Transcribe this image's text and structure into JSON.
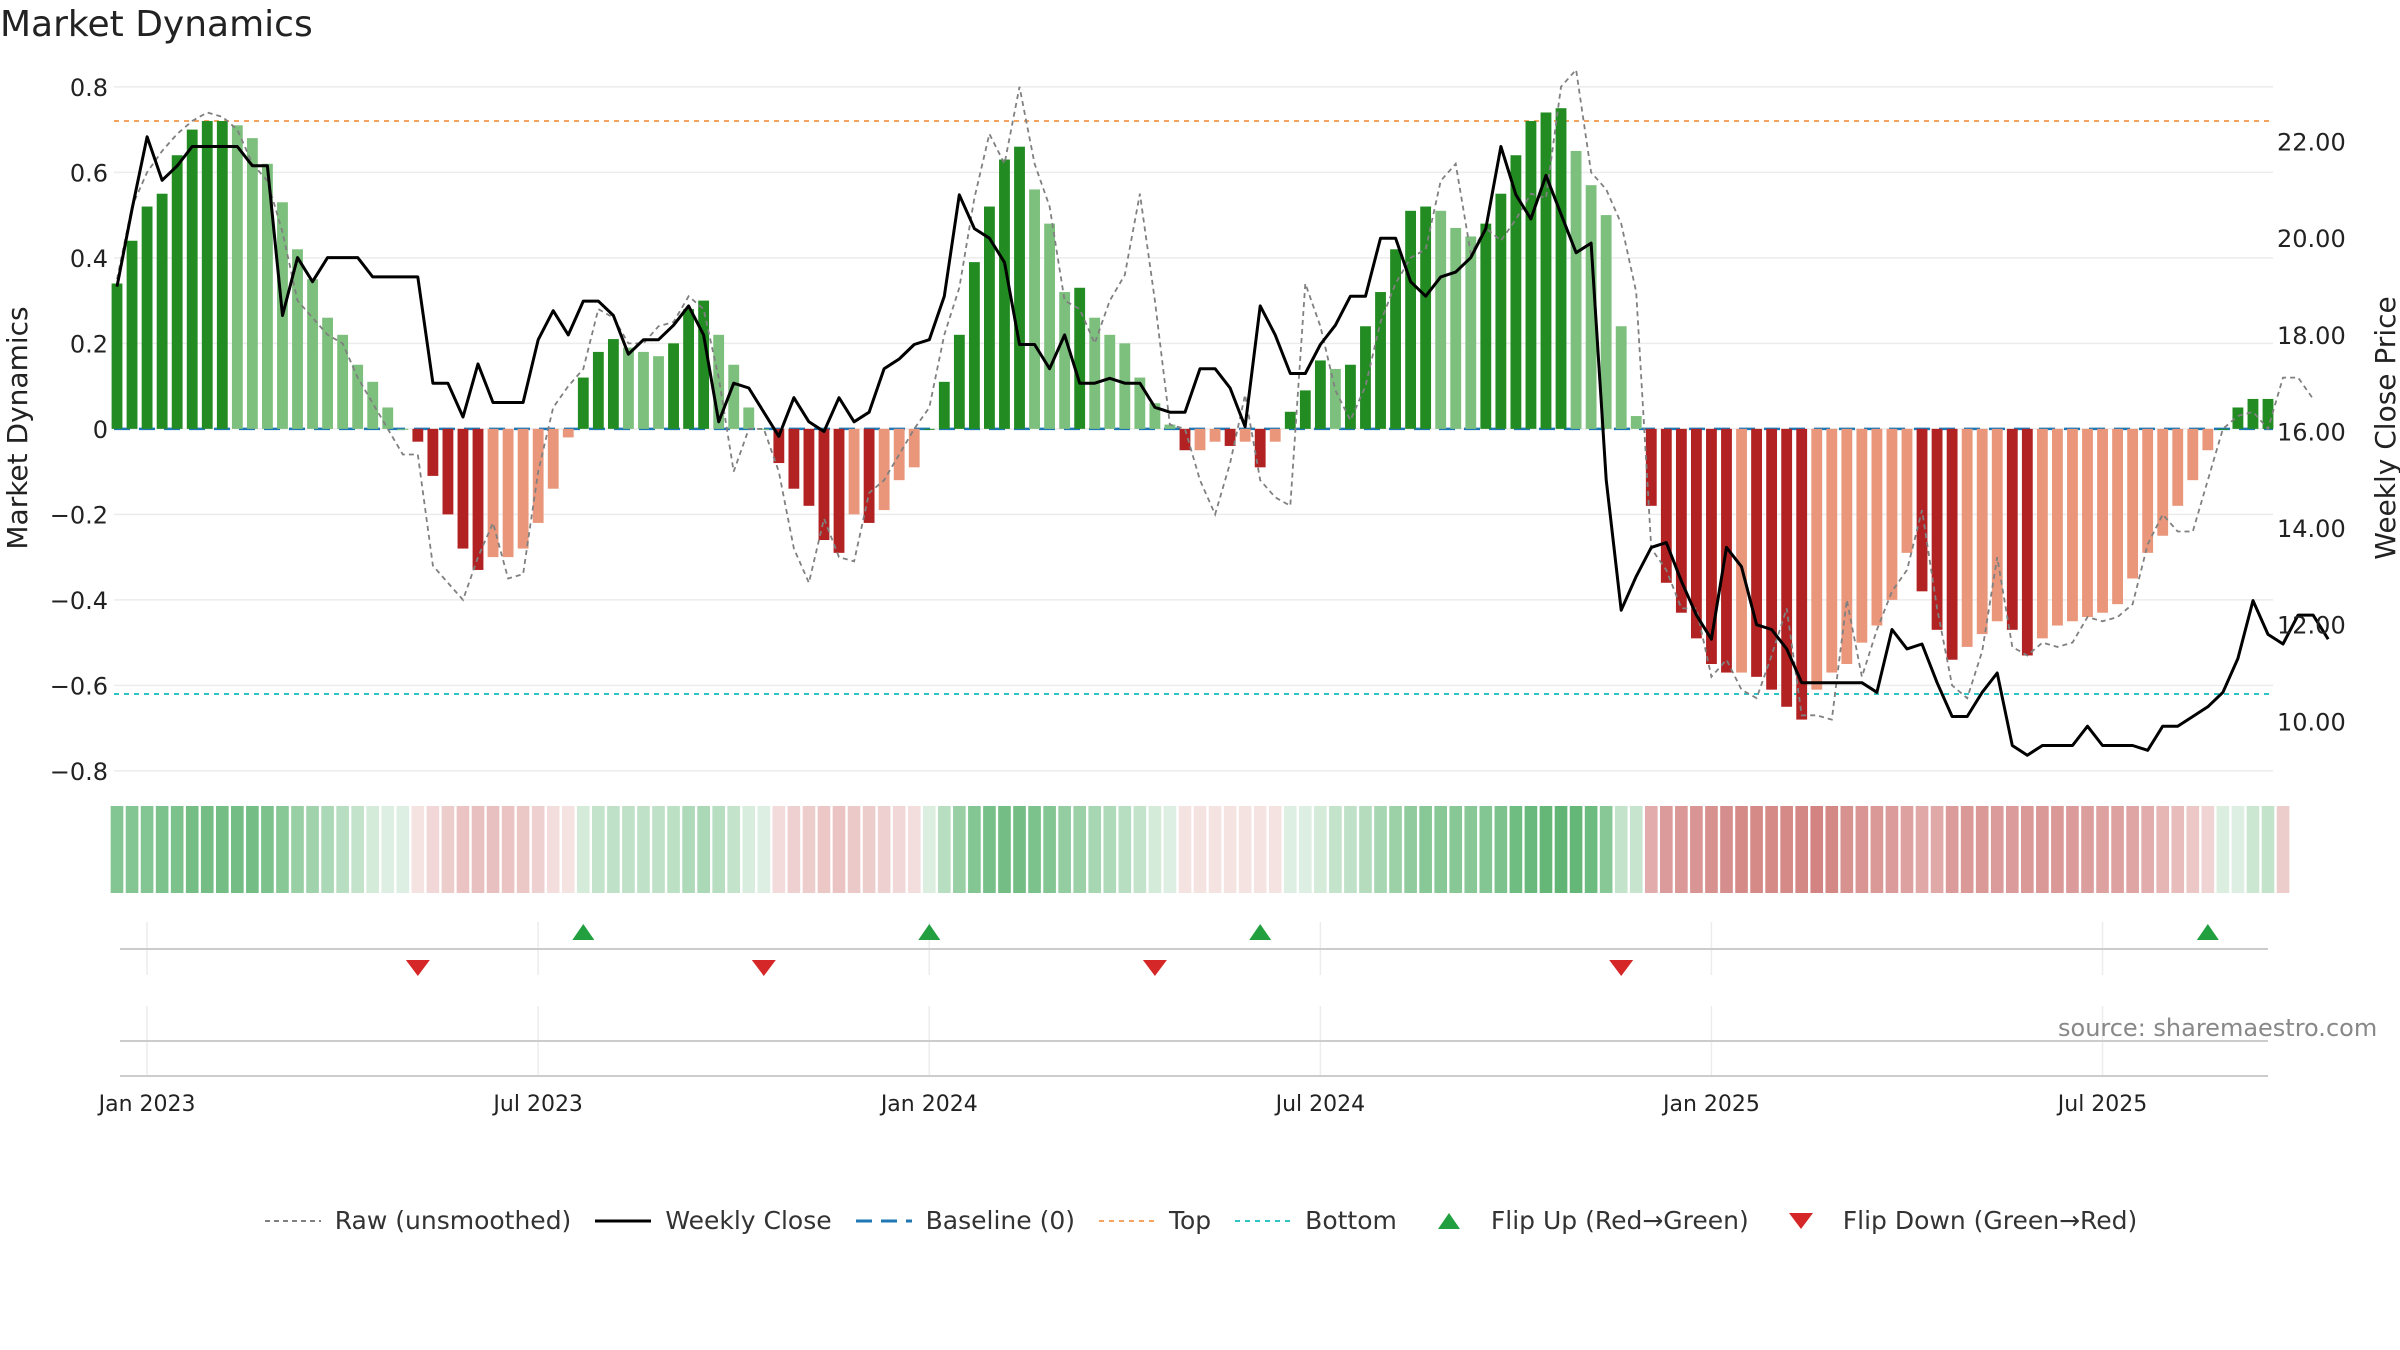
{
  "chart_data": {
    "type": "bar",
    "title": "Market Dynamics",
    "ylabel_left": "Market Dynamics",
    "ylabel_right": "Weekly Close Price",
    "ylim_left": [
      -0.84,
      0.83
    ],
    "ylim_right": [
      8.62,
      23.4
    ],
    "yticks_left": [
      {
        "v": 0.8,
        "label": "0.8"
      },
      {
        "v": 0.6,
        "label": "0.6"
      },
      {
        "v": 0.4,
        "label": "0.4"
      },
      {
        "v": 0.2,
        "label": "0.2"
      },
      {
        "v": 0,
        "label": "0"
      },
      {
        "v": -0.2,
        "label": "−0.2"
      },
      {
        "v": -0.4,
        "label": "−0.4"
      },
      {
        "v": -0.6,
        "label": "−0.6"
      },
      {
        "v": -0.8,
        "label": "−0.8"
      }
    ],
    "yticks_right": [
      {
        "v": 22,
        "label": "22.00"
      },
      {
        "v": 20,
        "label": "20.00"
      },
      {
        "v": 18,
        "label": "18.00"
      },
      {
        "v": 16,
        "label": "16.00"
      },
      {
        "v": 14,
        "label": "14.00"
      },
      {
        "v": 12,
        "label": "12.00"
      },
      {
        "v": 10,
        "label": "10.00"
      }
    ],
    "xticks": [
      {
        "week": 2,
        "label": "Jan 2023"
      },
      {
        "week": 28,
        "label": "Jul 2023"
      },
      {
        "week": 54,
        "label": "Jan 2024"
      },
      {
        "week": 80,
        "label": "Jul 2024"
      },
      {
        "week": 106,
        "label": "Jan 2025"
      },
      {
        "week": 132,
        "label": "Jul 2025"
      }
    ],
    "week_count": 144,
    "top_level": 0.72,
    "bottom_level": -0.62,
    "baseline": 0,
    "momentum": [
      0.34,
      0.44,
      0.52,
      0.55,
      0.64,
      0.7,
      0.72,
      0.72,
      0.71,
      0.68,
      0.62,
      0.53,
      0.42,
      0.35,
      0.26,
      0.22,
      0.15,
      0.11,
      0.05,
      0.0,
      -0.03,
      -0.11,
      -0.2,
      -0.28,
      -0.33,
      -0.3,
      -0.3,
      -0.28,
      -0.22,
      -0.14,
      -0.02,
      0.12,
      0.18,
      0.21,
      0.19,
      0.18,
      0.17,
      0.2,
      0.28,
      0.3,
      0.22,
      0.15,
      0.05,
      0.0,
      -0.08,
      -0.14,
      -0.18,
      -0.26,
      -0.29,
      -0.2,
      -0.22,
      -0.19,
      -0.12,
      -0.09,
      0.0,
      0.11,
      0.22,
      0.39,
      0.52,
      0.63,
      0.66,
      0.56,
      0.48,
      0.32,
      0.33,
      0.26,
      0.22,
      0.2,
      0.12,
      0.06,
      0.01,
      -0.05,
      -0.05,
      -0.03,
      -0.04,
      -0.03,
      -0.09,
      -0.03,
      0.04,
      0.09,
      0.16,
      0.14,
      0.15,
      0.24,
      0.32,
      0.42,
      0.51,
      0.52,
      0.51,
      0.47,
      0.45,
      0.48,
      0.55,
      0.64,
      0.72,
      0.74,
      0.75,
      0.65,
      0.57,
      0.5,
      0.24,
      0.03,
      -0.18,
      -0.36,
      -0.43,
      -0.49,
      -0.55,
      -0.57,
      -0.57,
      -0.58,
      -0.61,
      -0.65,
      -0.68,
      -0.61,
      -0.57,
      -0.55,
      -0.5,
      -0.46,
      -0.4,
      -0.29,
      -0.38,
      -0.47,
      -0.54,
      -0.51,
      -0.48,
      -0.45,
      -0.47,
      -0.53,
      -0.49,
      -0.46,
      -0.45,
      -0.44,
      -0.43,
      -0.41,
      -0.35,
      -0.29,
      -0.25,
      -0.18,
      -0.12,
      -0.05,
      0.0,
      0.05,
      0.07,
      0.07
    ],
    "raw": [
      0.35,
      0.52,
      0.6,
      0.65,
      0.69,
      0.72,
      0.74,
      0.73,
      0.7,
      0.62,
      0.58,
      0.46,
      0.3,
      0.26,
      0.22,
      0.2,
      0.12,
      0.06,
      0.0,
      -0.06,
      -0.06,
      -0.32,
      -0.36,
      -0.4,
      -0.3,
      -0.22,
      -0.35,
      -0.34,
      -0.1,
      0.05,
      0.1,
      0.14,
      0.28,
      0.26,
      0.2,
      0.2,
      0.24,
      0.25,
      0.31,
      0.28,
      0.12,
      -0.1,
      0.0,
      0.0,
      -0.1,
      -0.28,
      -0.36,
      -0.21,
      -0.3,
      -0.31,
      -0.15,
      -0.12,
      -0.06,
      0.0,
      0.05,
      0.22,
      0.33,
      0.54,
      0.69,
      0.62,
      0.8,
      0.62,
      0.52,
      0.3,
      0.28,
      0.2,
      0.3,
      0.36,
      0.55,
      0.3,
      0.01,
      0.0,
      -0.12,
      -0.2,
      -0.08,
      0.08,
      -0.12,
      -0.16,
      -0.18,
      0.34,
      0.24,
      0.09,
      0.02,
      0.1,
      0.25,
      0.34,
      0.4,
      0.42,
      0.58,
      0.62,
      0.41,
      0.47,
      0.44,
      0.49,
      0.55,
      0.54,
      0.8,
      0.84,
      0.6,
      0.56,
      0.48,
      0.32,
      -0.28,
      -0.33,
      -0.42,
      -0.42,
      -0.58,
      -0.54,
      -0.61,
      -0.63,
      -0.53,
      -0.42,
      -0.67,
      -0.67,
      -0.68,
      -0.4,
      -0.58,
      -0.47,
      -0.38,
      -0.33,
      -0.19,
      -0.42,
      -0.6,
      -0.63,
      -0.52,
      -0.3,
      -0.51,
      -0.53,
      -0.5,
      -0.51,
      -0.5,
      -0.44,
      -0.45,
      -0.44,
      -0.41,
      -0.27,
      -0.2,
      -0.24,
      -0.24,
      -0.12,
      0.0,
      0.03,
      0.04,
      0.0,
      0.12,
      0.12,
      0.07
    ],
    "close": [
      19.0,
      20.6,
      22.1,
      21.2,
      21.5,
      21.9,
      21.9,
      21.9,
      21.9,
      21.5,
      21.5,
      18.4,
      19.6,
      19.1,
      19.6,
      19.6,
      19.6,
      19.2,
      19.2,
      19.2,
      19.2,
      17.0,
      17.0,
      16.3,
      17.4,
      16.6,
      16.6,
      16.6,
      17.9,
      18.5,
      18.0,
      18.7,
      18.7,
      18.4,
      17.6,
      17.9,
      17.9,
      18.2,
      18.6,
      18.0,
      16.2,
      17.0,
      16.9,
      16.4,
      15.9,
      16.7,
      16.2,
      16.0,
      16.7,
      16.2,
      16.4,
      17.3,
      17.5,
      17.8,
      17.9,
      18.8,
      20.9,
      20.2,
      20.0,
      19.5,
      17.8,
      17.8,
      17.3,
      18.0,
      17.0,
      17.0,
      17.1,
      17.0,
      17.0,
      16.5,
      16.4,
      16.4,
      17.3,
      17.3,
      16.9,
      16.1,
      18.6,
      18.0,
      17.2,
      17.2,
      17.8,
      18.2,
      18.8,
      18.8,
      20.0,
      20.0,
      19.1,
      18.8,
      19.2,
      19.3,
      19.6,
      20.2,
      21.9,
      20.9,
      20.4,
      21.3,
      20.5,
      19.7,
      19.9,
      15.0,
      12.3,
      13.0,
      13.6,
      13.7,
      12.9,
      12.2,
      11.7,
      13.6,
      13.2,
      12.0,
      11.9,
      11.5,
      10.8,
      10.8,
      10.8,
      10.8,
      10.8,
      10.6,
      11.9,
      11.5,
      11.6,
      10.8,
      10.1,
      10.1,
      10.6,
      11.0,
      9.5,
      9.3,
      9.5,
      9.5,
      9.5,
      9.9,
      9.5,
      9.5,
      9.5,
      9.4,
      9.9,
      9.9,
      10.1,
      10.3,
      10.6,
      11.3,
      12.5,
      11.8,
      11.6,
      12.2,
      12.2,
      11.7
    ],
    "background_band": [
      0.62,
      0.62,
      0.62,
      0.66,
      0.66,
      0.7,
      0.7,
      0.7,
      0.7,
      0.7,
      0.66,
      0.6,
      0.52,
      0.48,
      0.42,
      0.36,
      0.3,
      0.22,
      0.14,
      0.1,
      0.14,
      0.24,
      0.3,
      0.36,
      0.38,
      0.38,
      0.36,
      0.34,
      0.28,
      0.2,
      0.16,
      0.22,
      0.3,
      0.32,
      0.32,
      0.32,
      0.32,
      0.34,
      0.4,
      0.42,
      0.36,
      0.3,
      0.2,
      0.14,
      0.22,
      0.28,
      0.3,
      0.34,
      0.36,
      0.32,
      0.3,
      0.28,
      0.24,
      0.2,
      0.18,
      0.36,
      0.52,
      0.62,
      0.68,
      0.7,
      0.7,
      0.66,
      0.62,
      0.54,
      0.5,
      0.44,
      0.4,
      0.36,
      0.3,
      0.22,
      0.14,
      0.1,
      0.12,
      0.14,
      0.16,
      0.16,
      0.16,
      0.16,
      0.12,
      0.14,
      0.22,
      0.3,
      0.32,
      0.38,
      0.44,
      0.5,
      0.56,
      0.6,
      0.6,
      0.6,
      0.6,
      0.62,
      0.66,
      0.72,
      0.76,
      0.78,
      0.8,
      0.78,
      0.74,
      0.6,
      0.3,
      0.28,
      0.5,
      0.6,
      0.62,
      0.64,
      0.66,
      0.68,
      0.7,
      0.7,
      0.7,
      0.7,
      0.72,
      0.74,
      0.72,
      0.66,
      0.64,
      0.62,
      0.6,
      0.56,
      0.52,
      0.52,
      0.6,
      0.62,
      0.62,
      0.6,
      0.6,
      0.62,
      0.62,
      0.62,
      0.6,
      0.58,
      0.56,
      0.56,
      0.54,
      0.5,
      0.44,
      0.4,
      0.34,
      0.26,
      0.18,
      0.12,
      0.26,
      0.3,
      0.3
    ],
    "flip_up_weeks": [
      31,
      54,
      76,
      139
    ],
    "flip_down_weeks": [
      20,
      43,
      69,
      100
    ],
    "legend": [
      {
        "key": "raw",
        "label": "Raw (unsmoothed)"
      },
      {
        "key": "close",
        "label": "Weekly Close"
      },
      {
        "key": "baseline",
        "label": "Baseline (0)"
      },
      {
        "key": "top",
        "label": "Top"
      },
      {
        "key": "bottom",
        "label": "Bottom"
      },
      {
        "key": "flipup",
        "label": "Flip Up (Red→Green)"
      },
      {
        "key": "flipdown",
        "label": "Flip Down (Green→Red)"
      }
    ],
    "source": "source: sharemaestro.com"
  },
  "colors": {
    "pos_dark": "#228b22",
    "pos_light": "#7dbf7d",
    "neg_dark": "#b22222",
    "neg_light": "#e9967a",
    "band_pos": "#2e9e48",
    "band_neg": "#c0504d",
    "raw": "#808080",
    "close": "#000000",
    "baseline": "#1f77b4",
    "top": "#f4a460",
    "bottom": "#2ec4c4",
    "flip_up": "#22a040",
    "flip_down": "#d62728",
    "grid": "#ececec",
    "text": "#222222"
  }
}
